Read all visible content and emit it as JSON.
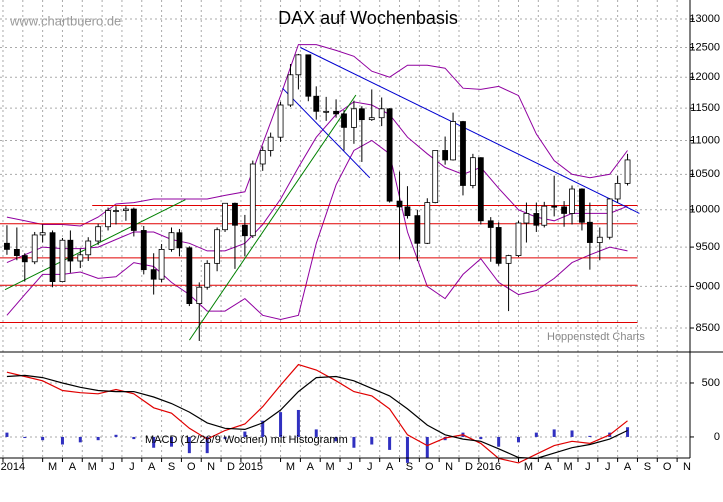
{
  "chart_data": [
    {
      "type": "candlestick",
      "title": "DAX auf Wochenbasis",
      "watermark": "www.chartbuero.de",
      "source": "Hoppenstedt Charts",
      "log_scale": true,
      "grid": true,
      "ylim": [
        8224,
        13344
      ],
      "yticks": [
        8500,
        9000,
        9500,
        10000,
        10500,
        11000,
        11500,
        12000,
        12500,
        13000
      ],
      "xlim": [
        -0.15,
        34.65
      ],
      "up_color": "#ffffff",
      "down_color": "#000000",
      "x": [
        0.2,
        0.7,
        1.1,
        1.6,
        2.0,
        2.5,
        3.0,
        3.4,
        3.9,
        4.3,
        4.8,
        5.3,
        5.7,
        6.2,
        6.6,
        7.1,
        7.6,
        8.0,
        8.5,
        8.9,
        9.4,
        9.9,
        10.3,
        10.8,
        11.2,
        11.7,
        12.2,
        12.6,
        13.1,
        13.5,
        14.0,
        14.5,
        14.9,
        15.4,
        15.8,
        16.3,
        16.8,
        17.2,
        17.7,
        18.1,
        18.6,
        19.1,
        19.5,
        20.0,
        20.4,
        20.9,
        21.4,
        21.8,
        22.3,
        22.7,
        23.2,
        23.7,
        24.1,
        24.6,
        25.0,
        25.5,
        26.0,
        26.4,
        26.9,
        27.3,
        27.8,
        28.3,
        28.7,
        29.2,
        29.6,
        30.1,
        30.6,
        31.0,
        31.5
      ],
      "open": [
        9550,
        9470,
        9390,
        9310,
        9660,
        9690,
        9060,
        9590,
        9320,
        9400,
        9580,
        9770,
        9990,
        9990,
        10010,
        9720,
        9210,
        9090,
        9470,
        9690,
        9490,
        8790,
        8990,
        9290,
        9730,
        10090,
        9790,
        9650,
        10650,
        10850,
        11050,
        11550,
        12040,
        12375,
        11690,
        11450,
        11450,
        11410,
        11200,
        11490,
        11320,
        11350,
        11490,
        10120,
        10040,
        9920,
        9550,
        10100,
        10850,
        10710,
        11290,
        10340,
        10743,
        9850,
        9760,
        9290,
        9390,
        9820,
        9950,
        9790,
        10050,
        10040,
        9950,
        10290,
        9830,
        9560,
        9630,
        10150,
        10370
      ],
      "high": [
        9790,
        9760,
        9420,
        9700,
        9800,
        9720,
        9620,
        9720,
        9480,
        9630,
        9810,
        10030,
        10050,
        10050,
        10030,
        9780,
        9420,
        9540,
        9760,
        9740,
        9510,
        9050,
        9330,
        9760,
        10090,
        10100,
        9930,
        10700,
        10910,
        11120,
        11600,
        12220,
        12390,
        12380,
        11850,
        11680,
        11640,
        11470,
        11620,
        11530,
        11800,
        11670,
        11500,
        10540,
        10330,
        10000,
        10160,
        10850,
        11060,
        11430,
        11300,
        10800,
        10750,
        9900,
        9830,
        9400,
        9850,
        10100,
        10100,
        10110,
        10480,
        10120,
        10340,
        10300,
        10100,
        9760,
        10160,
        10480,
        10800
      ],
      "low": [
        9400,
        9330,
        9060,
        9280,
        9560,
        8990,
        9050,
        9170,
        9230,
        9320,
        9530,
        9720,
        9800,
        9850,
        9640,
        9150,
        8900,
        9050,
        9440,
        9380,
        8760,
        8350,
        8960,
        9190,
        9700,
        9220,
        9380,
        9620,
        10550,
        10760,
        10980,
        11520,
        11800,
        11610,
        11320,
        11300,
        11350,
        10850,
        10950,
        10680,
        11300,
        11220,
        10100,
        9340,
        9880,
        9320,
        9540,
        10090,
        10640,
        10700,
        10200,
        10300,
        9800,
        9310,
        9260,
        8700,
        9370,
        9560,
        9700,
        9760,
        9910,
        9770,
        9800,
        9720,
        9210,
        9330,
        9600,
        10100,
        10340
      ],
      "close": [
        9470,
        9390,
        9310,
        9660,
        9690,
        9060,
        9590,
        9320,
        9400,
        9580,
        9770,
        9990,
        9990,
        10010,
        9720,
        9210,
        9090,
        9470,
        9690,
        9490,
        8790,
        8990,
        9290,
        9730,
        10090,
        9790,
        9650,
        10650,
        10850,
        11050,
        11550,
        12040,
        12375,
        11690,
        11450,
        11450,
        11410,
        11200,
        11490,
        11320,
        11350,
        11490,
        10120,
        10040,
        9920,
        9550,
        10100,
        10850,
        10710,
        11290,
        10340,
        10743,
        9850,
        9760,
        9290,
        9390,
        9820,
        9950,
        9790,
        10050,
        10040,
        9950,
        10290,
        9830,
        9560,
        9630,
        10150,
        10370,
        10710
      ],
      "series": [
        {
          "color": "#9000a0",
          "x": [
            0.2,
            1.1,
            2.0,
            3.0,
            3.9,
            4.8,
            5.7,
            6.6,
            7.6,
            8.5,
            9.4,
            10.3,
            11.2,
            12.2,
            13.1,
            14.0,
            14.9,
            15.8,
            16.8,
            17.7,
            18.6,
            19.5,
            20.4,
            21.4,
            22.3,
            23.2,
            24.1,
            25.0,
            26.0,
            26.9,
            27.8,
            28.7,
            29.6,
            30.6,
            31.5
          ],
          "values": [
            9900,
            9850,
            9800,
            9800,
            9780,
            9900,
            10080,
            10100,
            10150,
            10150,
            10150,
            10150,
            10200,
            10250,
            10950,
            11700,
            12550,
            12550,
            12450,
            12350,
            12100,
            12000,
            12200,
            12200,
            12150,
            11820,
            11800,
            11850,
            11700,
            11100,
            10700,
            10500,
            10450,
            10500,
            10850
          ]
        },
        {
          "color": "#9000a0",
          "x": [
            0.2,
            1.1,
            2.0,
            3.0,
            3.9,
            4.8,
            5.7,
            6.6,
            7.6,
            8.5,
            9.4,
            10.3,
            11.2,
            12.2,
            13.1,
            14.0,
            14.9,
            15.8,
            16.8,
            17.7,
            18.6,
            19.5,
            20.4,
            21.4,
            22.3,
            23.2,
            24.1,
            25.0,
            26.0,
            26.9,
            27.8,
            28.7,
            29.6,
            30.6,
            31.5
          ],
          "values": [
            9300,
            9400,
            9500,
            9480,
            9480,
            9500,
            9600,
            9700,
            9700,
            9600,
            9550,
            9450,
            9450,
            9550,
            9800,
            10150,
            10600,
            11050,
            11400,
            11600,
            11550,
            11400,
            11050,
            10800,
            10600,
            10500,
            10600,
            10300,
            10000,
            9900,
            9850,
            9950,
            9950,
            9950,
            10050
          ]
        },
        {
          "color": "#9000a0",
          "x": [
            0.2,
            1.1,
            2.0,
            3.0,
            3.9,
            4.8,
            5.7,
            6.6,
            7.6,
            8.5,
            9.4,
            10.3,
            11.2,
            12.2,
            13.1,
            14.0,
            14.9,
            15.8,
            16.8,
            17.7,
            18.6,
            19.5,
            20.4,
            21.4,
            22.3,
            23.2,
            24.1,
            25.0,
            26.0,
            26.9,
            27.8,
            28.7,
            29.6,
            30.6,
            31.5
          ],
          "values": [
            8650,
            8900,
            9150,
            9150,
            9180,
            9100,
            9120,
            9300,
            9250,
            9050,
            8900,
            8700,
            8700,
            8850,
            8650,
            8600,
            8650,
            9550,
            10350,
            10850,
            11000,
            10800,
            9700,
            9000,
            8850,
            9150,
            9350,
            9050,
            8900,
            8950,
            9100,
            9300,
            9400,
            9500,
            9450
          ]
        },
        {
          "color": "#e00000",
          "x": [
            4.5,
            32.0
          ],
          "values": [
            10060,
            10060
          ]
        },
        {
          "color": "#e00000",
          "x": [
            -0.15,
            32.0
          ],
          "values": [
            9810,
            9810
          ]
        },
        {
          "color": "#e00000",
          "x": [
            -0.15,
            32.0
          ],
          "values": [
            9360,
            9360
          ]
        },
        {
          "color": "#e00000",
          "x": [
            -0.15,
            32.0
          ],
          "values": [
            9015,
            9015
          ]
        },
        {
          "color": "#e00000",
          "x": [
            -0.15,
            32.0
          ],
          "values": [
            8565,
            8565
          ]
        },
        {
          "color": "#0000d0",
          "x": [
            15.0,
            32.1
          ],
          "values": [
            12500,
            9950
          ]
        },
        {
          "color": "#0000d0",
          "x": [
            14.1,
            18.5
          ],
          "values": [
            11820,
            10450
          ]
        },
        {
          "color": "#008000",
          "x": [
            0.1,
            9.2
          ],
          "values": [
            8960,
            10140
          ]
        },
        {
          "color": "#008000",
          "x": [
            9.4,
            17.8
          ],
          "values": [
            8360,
            11710
          ]
        }
      ]
    },
    {
      "type": "macd",
      "label": "MACD (12/26/9 Wochen) mit Histogramm",
      "grid": true,
      "ylim": [
        -195,
        787
      ],
      "yticks": [
        0,
        500
      ],
      "xlim": [
        -0.15,
        34.65
      ],
      "xticks": [
        {
          "value": 0,
          "label": "2014"
        },
        {
          "value": 1,
          "label": null
        },
        {
          "value": 2,
          "label": "M"
        },
        {
          "value": 3,
          "label": "A"
        },
        {
          "value": 4,
          "label": "M"
        },
        {
          "value": 5,
          "label": "J"
        },
        {
          "value": 6,
          "label": "J"
        },
        {
          "value": 7,
          "label": "A"
        },
        {
          "value": 8,
          "label": "S"
        },
        {
          "value": 9,
          "label": "O"
        },
        {
          "value": 10,
          "label": "N"
        },
        {
          "value": 11,
          "label": "D"
        },
        {
          "value": 12,
          "label": "2015"
        },
        {
          "value": 13,
          "label": null
        },
        {
          "value": 14,
          "label": "M"
        },
        {
          "value": 15,
          "label": "A"
        },
        {
          "value": 16,
          "label": "M"
        },
        {
          "value": 17,
          "label": "J"
        },
        {
          "value": 18,
          "label": "J"
        },
        {
          "value": 19,
          "label": "A"
        },
        {
          "value": 20,
          "label": "S"
        },
        {
          "value": 21,
          "label": "O"
        },
        {
          "value": 22,
          "label": "N"
        },
        {
          "value": 23,
          "label": "D"
        },
        {
          "value": 24,
          "label": "2016"
        },
        {
          "value": 25,
          "label": null
        },
        {
          "value": 26,
          "label": "M"
        },
        {
          "value": 27,
          "label": "A"
        },
        {
          "value": 28,
          "label": "M"
        },
        {
          "value": 29,
          "label": "J"
        },
        {
          "value": 30,
          "label": "J"
        },
        {
          "value": 31,
          "label": "A"
        },
        {
          "value": 32,
          "label": "S"
        },
        {
          "value": 33,
          "label": "O"
        },
        {
          "value": 34,
          "label": "N"
        }
      ],
      "x": [
        0.2,
        1.1,
        2.0,
        3.0,
        3.9,
        4.8,
        5.7,
        6.6,
        7.6,
        8.5,
        9.4,
        10.3,
        11.2,
        12.2,
        13.1,
        14.0,
        14.9,
        15.8,
        16.8,
        17.7,
        18.6,
        19.5,
        20.4,
        21.4,
        22.3,
        23.2,
        24.1,
        25.0,
        26.0,
        26.9,
        27.8,
        28.7,
        29.6,
        30.6,
        31.5
      ],
      "series": [
        {
          "color": "#e00000",
          "values": [
            600,
            560,
            520,
            430,
            410,
            400,
            440,
            400,
            270,
            220,
            80,
            -20,
            60,
            120,
            280,
            480,
            670,
            620,
            520,
            420,
            380,
            260,
            20,
            -80,
            -10,
            20,
            -60,
            -200,
            -240,
            -160,
            -80,
            -40,
            -60,
            20,
            150
          ]
        },
        {
          "color": "#000000",
          "values": [
            560,
            570,
            550,
            500,
            460,
            430,
            420,
            420,
            370,
            310,
            230,
            130,
            80,
            70,
            130,
            250,
            420,
            550,
            560,
            520,
            450,
            380,
            260,
            110,
            20,
            -20,
            -40,
            -110,
            -190,
            -200,
            -150,
            -100,
            -70,
            -20,
            60
          ]
        }
      ],
      "histogram": {
        "color": "#3030c0",
        "values": [
          40,
          -10,
          -30,
          -70,
          -50,
          -30,
          20,
          -20,
          -100,
          -90,
          -150,
          -150,
          -20,
          50,
          150,
          230,
          250,
          70,
          -40,
          -100,
          -70,
          -120,
          -240,
          -190,
          -30,
          40,
          -20,
          -90,
          -50,
          40,
          70,
          60,
          10,
          40,
          90
        ]
      }
    }
  ]
}
